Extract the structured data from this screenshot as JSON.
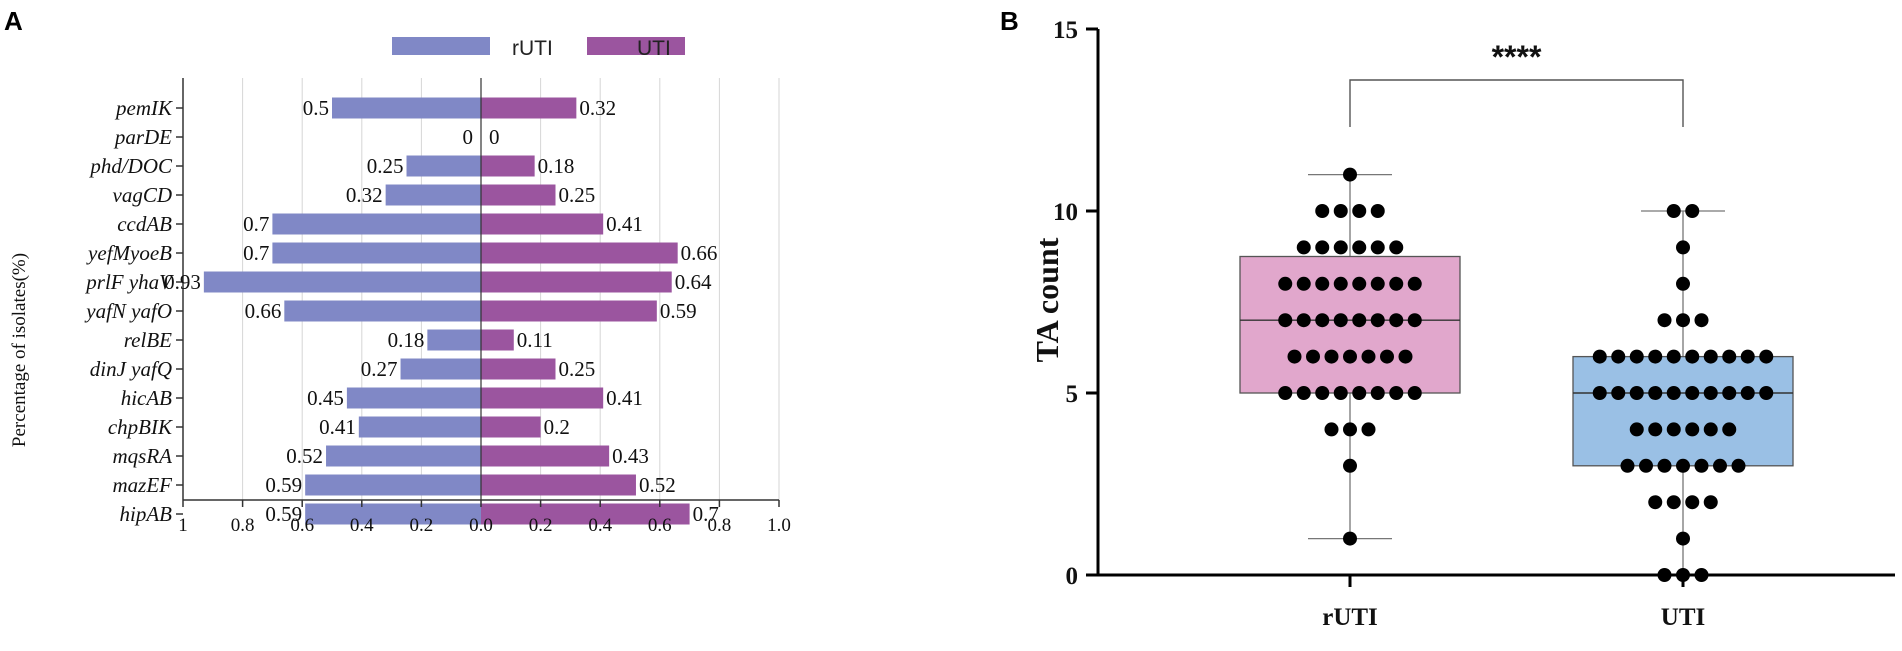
{
  "panel_a_letter": "A",
  "panel_b_letter": "B",
  "chart_data": [
    {
      "type": "bar",
      "orientation": "horizontal-diverging",
      "title": "",
      "ylabel": "Percentage of isolates(%)",
      "xlabel": "",
      "x_ticks": [
        "1",
        "0.8",
        "0.6",
        "0.4",
        "0.2",
        "0.0",
        "0.2",
        "0.4",
        "0.6",
        "0.8",
        "1.0"
      ],
      "xlim": [
        -1,
        1
      ],
      "legend": [
        {
          "name": "rUTI",
          "color": "#8088c6"
        },
        {
          "name": "UTI",
          "color": "#9b559f"
        }
      ],
      "categories": [
        "pemIK",
        "parDE",
        "phd/DOC",
        "vagCD",
        "ccdAB",
        "yefMyoeB",
        "prlF yhaV",
        "yafN yafO",
        "relBE",
        "dinJ yafQ",
        "hicAB",
        "chpBIK",
        "mqsRA",
        "mazEF",
        "hipAB"
      ],
      "series": [
        {
          "name": "rUTI",
          "color": "#8088c6",
          "values": [
            0.5,
            0,
            0.25,
            0.32,
            0.7,
            0.7,
            0.93,
            0.66,
            0.18,
            0.27,
            0.45,
            0.41,
            0.52,
            0.59,
            0.59
          ],
          "labels": [
            "0.5",
            "0",
            "0.25",
            "0.32",
            "0.7",
            "0.7",
            "0.93",
            "0.66",
            "0.18",
            "0.27",
            "0.45",
            "0.41",
            "0.52",
            "0.59",
            "0.59"
          ]
        },
        {
          "name": "UTI",
          "color": "#9b559f",
          "values": [
            0.32,
            0,
            0.18,
            0.25,
            0.41,
            0.66,
            0.64,
            0.59,
            0.11,
            0.25,
            0.41,
            0.2,
            0.43,
            0.52,
            0.7
          ],
          "labels": [
            "0.32",
            "0",
            "0.18",
            "0.25",
            "0.41",
            "0.66",
            "0.64",
            "0.59",
            "0.11",
            "0.25",
            "0.41",
            "0.2",
            "0.43",
            "0.52",
            "0.7"
          ]
        }
      ]
    },
    {
      "type": "box",
      "title": "",
      "ylabel": "TA count",
      "xlabel": "",
      "ylim": [
        0,
        15
      ],
      "y_ticks": [
        "0",
        "5",
        "10",
        "15"
      ],
      "significance": "****",
      "groups": [
        {
          "name": "rUTI",
          "color": "#e1a7cc",
          "min": 1,
          "q1": 5,
          "median": 7,
          "q3": 8.75,
          "max": 11,
          "points": [
            {
              "v": 11,
              "n": 1
            },
            {
              "v": 10,
              "n": 4
            },
            {
              "v": 9,
              "n": 6
            },
            {
              "v": 8,
              "n": 8
            },
            {
              "v": 7,
              "n": 8
            },
            {
              "v": 6,
              "n": 7
            },
            {
              "v": 5,
              "n": 8
            },
            {
              "v": 4,
              "n": 3
            },
            {
              "v": 3,
              "n": 1
            },
            {
              "v": 1,
              "n": 1
            }
          ]
        },
        {
          "name": "UTI",
          "color": "#9ac0e5",
          "min": 0,
          "q1": 3,
          "median": 5,
          "q3": 6,
          "max": 10,
          "points": [
            {
              "v": 10,
              "n": 2
            },
            {
              "v": 9,
              "n": 1
            },
            {
              "v": 8,
              "n": 1
            },
            {
              "v": 7,
              "n": 3
            },
            {
              "v": 6,
              "n": 10
            },
            {
              "v": 5,
              "n": 10
            },
            {
              "v": 4,
              "n": 6
            },
            {
              "v": 3,
              "n": 7
            },
            {
              "v": 2,
              "n": 4
            },
            {
              "v": 1,
              "n": 1
            },
            {
              "v": 0,
              "n": 3
            }
          ]
        }
      ]
    }
  ]
}
